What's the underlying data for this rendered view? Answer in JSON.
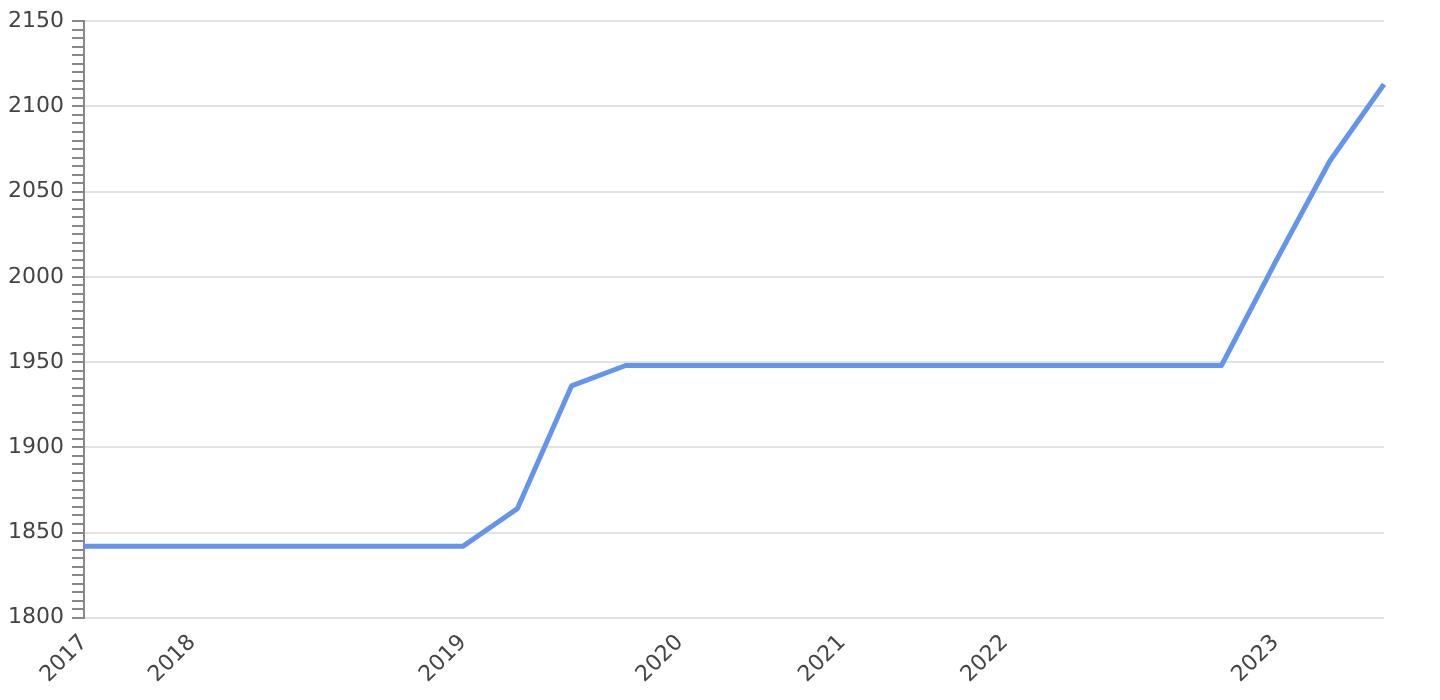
{
  "chart_data": {
    "type": "line",
    "categories": [
      "2017",
      null,
      "2018",
      null,
      null,
      null,
      null,
      "2019",
      null,
      null,
      null,
      "2020",
      null,
      null,
      "2021",
      null,
      null,
      "2022",
      null,
      null,
      null,
      null,
      "2023",
      null,
      null
    ],
    "series": [
      {
        "color": "#6495ed",
        "values": [
          1842,
          1842,
          1842,
          1842,
          1842,
          1842,
          1842,
          1842,
          1864,
          1936,
          1948,
          1948,
          1948,
          1948,
          1948,
          1948,
          1948,
          1948,
          1948,
          1948,
          1948,
          1948,
          2009,
          2068,
          2113
        ]
      }
    ],
    "ylim": [
      1800,
      2150
    ],
    "yticks": [
      1800,
      {
        "value": 1805,
        "label": null
      },
      {
        "value": 1810,
        "label": null
      },
      {
        "value": 1815,
        "label": null
      },
      {
        "value": 1820,
        "label": null
      },
      {
        "value": 1825,
        "label": null
      },
      {
        "value": 1830,
        "label": null
      },
      {
        "value": 1835,
        "label": null
      },
      {
        "value": 1840,
        "label": null
      },
      {
        "value": 1845,
        "label": null
      },
      1850,
      {
        "value": 1855,
        "label": null
      },
      {
        "value": 1860,
        "label": null
      },
      {
        "value": 1865,
        "label": null
      },
      {
        "value": 1870,
        "label": null
      },
      {
        "value": 1875,
        "label": null
      },
      {
        "value": 1880,
        "label": null
      },
      {
        "value": 1885,
        "label": null
      },
      {
        "value": 1890,
        "label": null
      },
      {
        "value": 1895,
        "label": null
      },
      1900,
      {
        "value": 1905,
        "label": null
      },
      {
        "value": 1910,
        "label": null
      },
      {
        "value": 1915,
        "label": null
      },
      {
        "value": 1920,
        "label": null
      },
      {
        "value": 1925,
        "label": null
      },
      {
        "value": 1930,
        "label": null
      },
      {
        "value": 1935,
        "label": null
      },
      {
        "value": 1940,
        "label": null
      },
      {
        "value": 1945,
        "label": null
      },
      1950,
      {
        "value": 1955,
        "label": null
      },
      {
        "value": 1960,
        "label": null
      },
      {
        "value": 1965,
        "label": null
      },
      {
        "value": 1970,
        "label": null
      },
      {
        "value": 1975,
        "label": null
      },
      {
        "value": 1980,
        "label": null
      },
      {
        "value": 1985,
        "label": null
      },
      {
        "value": 1990,
        "label": null
      },
      {
        "value": 1995,
        "label": null
      },
      2000,
      {
        "value": 2005,
        "label": null
      },
      {
        "value": 2010,
        "label": null
      },
      {
        "value": 2015,
        "label": null
      },
      {
        "value": 2020,
        "label": null
      },
      {
        "value": 2025,
        "label": null
      },
      {
        "value": 2030,
        "label": null
      },
      {
        "value": 2035,
        "label": null
      },
      {
        "value": 2040,
        "label": null
      },
      {
        "value": 2045,
        "label": null
      },
      2050,
      {
        "value": 2055,
        "label": null
      },
      {
        "value": 2060,
        "label": null
      },
      {
        "value": 2065,
        "label": null
      },
      {
        "value": 2070,
        "label": null
      },
      {
        "value": 2075,
        "label": null
      },
      {
        "value": 2080,
        "label": null
      },
      {
        "value": 2085,
        "label": null
      },
      {
        "value": 2090,
        "label": null
      },
      {
        "value": 2095,
        "label": null
      },
      2100,
      {
        "value": 2105,
        "label": null
      },
      {
        "value": 2110,
        "label": null
      },
      {
        "value": 2115,
        "label": null
      },
      {
        "value": 2120,
        "label": null
      },
      {
        "value": 2125,
        "label": null
      },
      {
        "value": 2130,
        "label": null
      },
      {
        "value": 2135,
        "label": null
      },
      {
        "value": 2140,
        "label": null
      },
      {
        "value": 2145,
        "label": null
      },
      2150
    ],
    "grid": "y",
    "legend": false,
    "marker": "none",
    "line_style": "solid"
  }
}
